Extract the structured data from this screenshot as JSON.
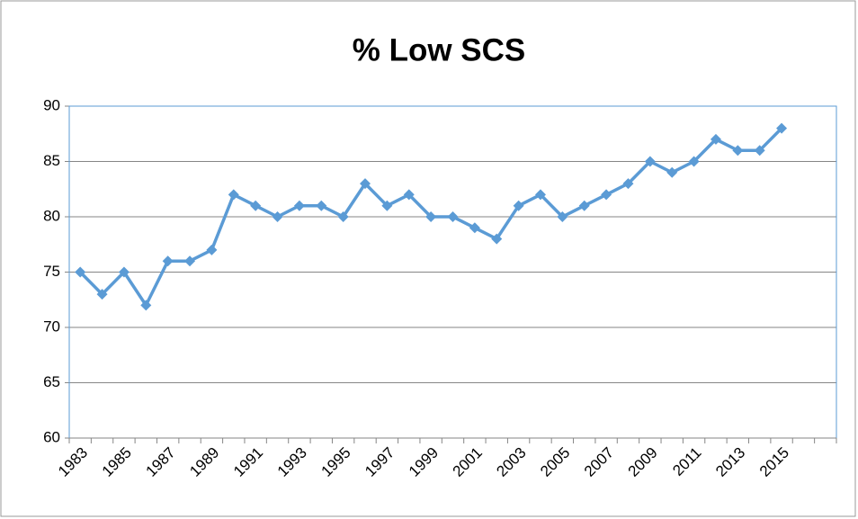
{
  "chart_data": {
    "type": "line",
    "title": "% Low SCS",
    "categories": [
      "1983",
      null,
      "1985",
      null,
      "1987",
      null,
      "1989",
      null,
      "1991",
      null,
      "1993",
      null,
      "1995",
      null,
      "1997",
      null,
      "1999",
      null,
      "2001",
      null,
      "2003",
      null,
      "2005",
      null,
      "2007",
      null,
      "2009",
      null,
      "2011",
      null,
      "2013",
      null,
      "2015",
      null,
      null
    ],
    "values": [
      75,
      73,
      75,
      72,
      76,
      76,
      77,
      82,
      81,
      80,
      81,
      81,
      80,
      83,
      81,
      82,
      80,
      80,
      79,
      78,
      81,
      82,
      80,
      81,
      82,
      83,
      85,
      84,
      85,
      87,
      86,
      86,
      88,
      null,
      null
    ],
    "color": "#5b9bd5",
    "ylim": [
      60,
      90
    ],
    "yticks": [
      60,
      65,
      70,
      75,
      80,
      85,
      90
    ],
    "grid": true
  }
}
